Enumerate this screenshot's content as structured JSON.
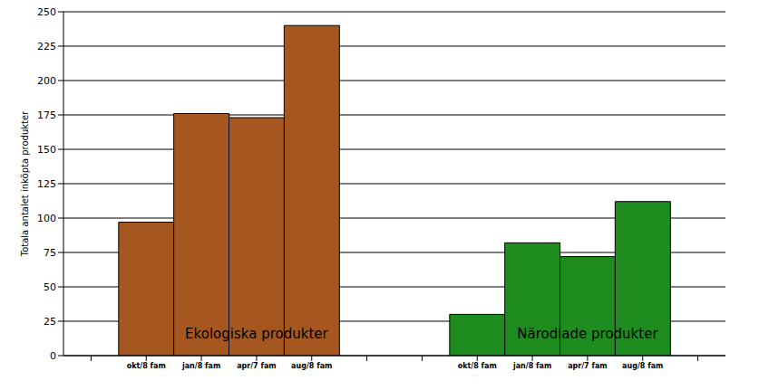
{
  "chart_data": {
    "type": "bar",
    "y_label": "Totala antalet inköpta produkter",
    "categories": [
      "okt/8 fam",
      "jan/8 fam",
      "apr/7 fam",
      "aug/8 fam"
    ],
    "series": [
      {
        "name": "Ekologiska produkter",
        "color": "#a5571f",
        "values": [
          97,
          176,
          173,
          240
        ]
      },
      {
        "name": "Närodlade produkter",
        "color": "#1e8c1e",
        "values": [
          30,
          82,
          72,
          112
        ]
      }
    ],
    "ylim": [
      0,
      250
    ],
    "yticks": [
      0,
      25,
      50,
      75,
      100,
      125,
      150,
      175,
      200,
      225,
      250
    ],
    "grid": true
  }
}
